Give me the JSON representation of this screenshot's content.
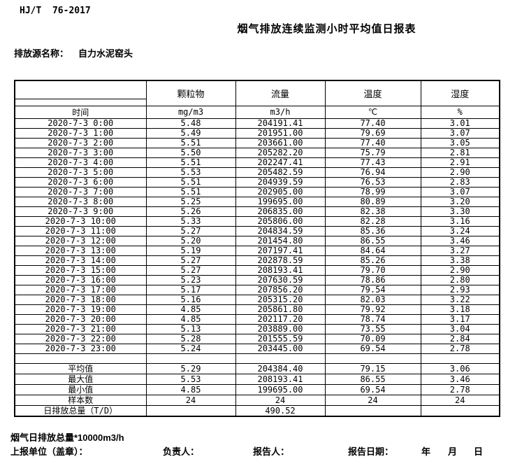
{
  "header": {
    "standard_code": "HJ/T  76-2017",
    "title": "烟气排放连续监测小时平均值日报表",
    "source_label": "排放源名称：",
    "source_name": "自力水泥窑头"
  },
  "table": {
    "time_header": "时间",
    "columns": [
      {
        "label": "颗粒物",
        "unit": "mg/m3"
      },
      {
        "label": "流量",
        "unit": "m3/h"
      },
      {
        "label": "温度",
        "unit": "℃"
      },
      {
        "label": "湿度",
        "unit": "%"
      }
    ],
    "rows": [
      {
        "time": "2020-7-3 0:00",
        "values": [
          "5.48",
          "204191.41",
          "77.40",
          "3.01"
        ]
      },
      {
        "time": "2020-7-3 1:00",
        "values": [
          "5.49",
          "201951.00",
          "79.69",
          "3.07"
        ]
      },
      {
        "time": "2020-7-3 2:00",
        "values": [
          "5.51",
          "203661.00",
          "77.40",
          "3.05"
        ]
      },
      {
        "time": "2020-7-3 3:00",
        "values": [
          "5.50",
          "205282.20",
          "75.79",
          "2.81"
        ]
      },
      {
        "time": "2020-7-3 4:00",
        "values": [
          "5.51",
          "202247.41",
          "77.43",
          "2.91"
        ]
      },
      {
        "time": "2020-7-3 5:00",
        "values": [
          "5.53",
          "205482.59",
          "76.94",
          "2.90"
        ]
      },
      {
        "time": "2020-7-3 6:00",
        "values": [
          "5.51",
          "204939.59",
          "76.53",
          "2.83"
        ]
      },
      {
        "time": "2020-7-3 7:00",
        "values": [
          "5.51",
          "202905.00",
          "78.99",
          "3.07"
        ]
      },
      {
        "time": "2020-7-3 8:00",
        "values": [
          "5.25",
          "199695.00",
          "80.89",
          "3.20"
        ]
      },
      {
        "time": "2020-7-3 9:00",
        "values": [
          "5.26",
          "206835.00",
          "82.38",
          "3.30"
        ]
      },
      {
        "time": "2020-7-3 10:00",
        "values": [
          "5.33",
          "205806.00",
          "82.28",
          "3.16"
        ]
      },
      {
        "time": "2020-7-3 11:00",
        "values": [
          "5.27",
          "204834.59",
          "85.36",
          "3.24"
        ]
      },
      {
        "time": "2020-7-3 12:00",
        "values": [
          "5.20",
          "201454.80",
          "86.55",
          "3.46"
        ]
      },
      {
        "time": "2020-7-3 13:00",
        "values": [
          "5.19",
          "207197.41",
          "84.64",
          "3.27"
        ]
      },
      {
        "time": "2020-7-3 14:00",
        "values": [
          "5.27",
          "202878.59",
          "85.26",
          "3.38"
        ]
      },
      {
        "time": "2020-7-3 15:00",
        "values": [
          "5.27",
          "208193.41",
          "79.70",
          "2.90"
        ]
      },
      {
        "time": "2020-7-3 16:00",
        "values": [
          "5.23",
          "207630.59",
          "78.86",
          "2.80"
        ]
      },
      {
        "time": "2020-7-3 17:00",
        "values": [
          "5.17",
          "207856.20",
          "79.54",
          "2.93"
        ]
      },
      {
        "time": "2020-7-3 18:00",
        "values": [
          "5.16",
          "205315.20",
          "82.03",
          "3.22"
        ]
      },
      {
        "time": "2020-7-3 19:00",
        "values": [
          "4.85",
          "205861.80",
          "79.92",
          "3.18"
        ]
      },
      {
        "time": "2020-7-3 20:00",
        "values": [
          "4.85",
          "202117.20",
          "78.74",
          "3.17"
        ]
      },
      {
        "time": "2020-7-3 21:00",
        "values": [
          "5.13",
          "203889.00",
          "73.55",
          "3.04"
        ]
      },
      {
        "time": "2020-7-3 22:00",
        "values": [
          "5.28",
          "201555.59",
          "70.09",
          "2.84"
        ]
      },
      {
        "time": "2020-7-3 23:00",
        "values": [
          "5.24",
          "203445.00",
          "69.54",
          "2.78"
        ]
      }
    ],
    "summary": [
      {
        "label": "平均值",
        "values": [
          "5.29",
          "204384.40",
          "79.15",
          "3.06"
        ]
      },
      {
        "label": "最大值",
        "values": [
          "5.53",
          "208193.41",
          "86.55",
          "3.46"
        ]
      },
      {
        "label": "最小值",
        "values": [
          "4.85",
          "199695.00",
          "69.54",
          "2.78"
        ]
      },
      {
        "label": "样本数",
        "values": [
          "24",
          "24",
          "24",
          "24"
        ]
      },
      {
        "label": "日排放总量（T/D）",
        "values": [
          "",
          "490.52",
          "",
          ""
        ]
      }
    ]
  },
  "footer": {
    "note": "烟气日排放总量*10000m3/h",
    "report_unit_label": "上报单位（盖章）：",
    "responsible_label": "负责人：",
    "reporter_label": "报告人：",
    "report_date_label": "报告日期：",
    "year_label": "年",
    "month_label": "月",
    "day_label": "日"
  }
}
